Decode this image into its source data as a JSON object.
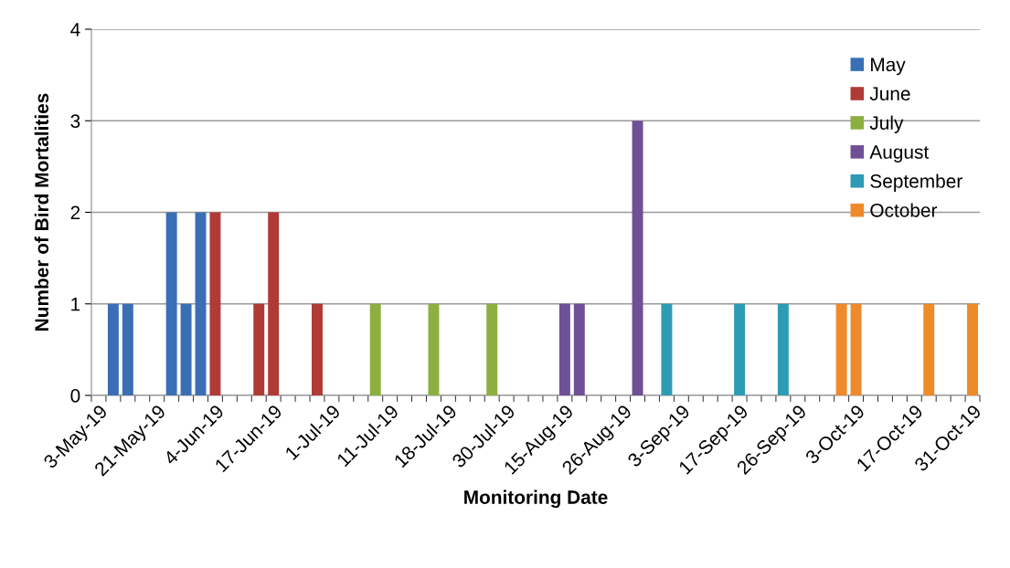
{
  "chart_data": {
    "type": "bar",
    "xlabel": "Monitoring Date",
    "ylabel": "Number of Bird Mortalities",
    "categories": [
      "3-May-19",
      null,
      null,
      null,
      "21-May-19",
      null,
      null,
      null,
      "4-Jun-19",
      null,
      null,
      null,
      "17-Jun-19",
      null,
      null,
      null,
      "1-Jul-19",
      null,
      null,
      null,
      "11-Jul-19",
      null,
      null,
      null,
      "18-Jul-19",
      null,
      null,
      null,
      "30-Jul-19",
      null,
      null,
      null,
      "15-Aug-19",
      null,
      null,
      null,
      "26-Aug-19",
      null,
      null,
      null,
      "3-Sep-19",
      null,
      null,
      null,
      "17-Sep-19",
      null,
      null,
      null,
      "26-Sep-19",
      null,
      null,
      null,
      "3-Oct-19",
      null,
      null,
      null,
      "17-Oct-19",
      null,
      null,
      null,
      "31-Oct-19"
    ],
    "series": [
      {
        "name": "May",
        "color": "#3a6fb5",
        "values": [
          null,
          1,
          1,
          null,
          null,
          2,
          1,
          2,
          null,
          null,
          null,
          null,
          null,
          null,
          null,
          null,
          null,
          null,
          null,
          null,
          null,
          null,
          null,
          null,
          null,
          null,
          null,
          null,
          null,
          null,
          null,
          null,
          null,
          null,
          null,
          null,
          null,
          null,
          null,
          null,
          null,
          null,
          null,
          null,
          null,
          null,
          null,
          null,
          null,
          null,
          null,
          null,
          null,
          null,
          null,
          null,
          null,
          null,
          null,
          null,
          null
        ]
      },
      {
        "name": "June",
        "color": "#b03a36",
        "values": [
          null,
          null,
          null,
          null,
          null,
          null,
          null,
          null,
          2,
          null,
          null,
          1,
          2,
          null,
          null,
          1,
          null,
          null,
          null,
          null,
          null,
          null,
          null,
          null,
          null,
          null,
          null,
          null,
          null,
          null,
          null,
          null,
          null,
          null,
          null,
          null,
          null,
          null,
          null,
          null,
          null,
          null,
          null,
          null,
          null,
          null,
          null,
          null,
          null,
          null,
          null,
          null,
          null,
          null,
          null,
          null,
          null,
          null,
          null,
          null,
          null
        ]
      },
      {
        "name": "July",
        "color": "#8cb040",
        "values": [
          null,
          null,
          null,
          null,
          null,
          null,
          null,
          null,
          null,
          null,
          null,
          null,
          null,
          null,
          null,
          null,
          null,
          null,
          null,
          1,
          null,
          null,
          null,
          1,
          null,
          null,
          null,
          1,
          null,
          null,
          null,
          null,
          null,
          null,
          null,
          null,
          null,
          null,
          null,
          null,
          null,
          null,
          null,
          null,
          null,
          null,
          null,
          null,
          null,
          null,
          null,
          null,
          null,
          null,
          null,
          null,
          null,
          null,
          null,
          null,
          null
        ]
      },
      {
        "name": "August",
        "color": "#6f4f96",
        "values": [
          null,
          null,
          null,
          null,
          null,
          null,
          null,
          null,
          null,
          null,
          null,
          null,
          null,
          null,
          null,
          null,
          null,
          null,
          null,
          null,
          null,
          null,
          null,
          null,
          null,
          null,
          null,
          null,
          null,
          null,
          null,
          null,
          1,
          1,
          null,
          null,
          null,
          3,
          null,
          null,
          null,
          null,
          null,
          null,
          null,
          null,
          null,
          null,
          null,
          null,
          null,
          null,
          null,
          null,
          null,
          null,
          null,
          null,
          null,
          null,
          null
        ]
      },
      {
        "name": "September",
        "color": "#2e9bb5",
        "values": [
          null,
          null,
          null,
          null,
          null,
          null,
          null,
          null,
          null,
          null,
          null,
          null,
          null,
          null,
          null,
          null,
          null,
          null,
          null,
          null,
          null,
          null,
          null,
          null,
          null,
          null,
          null,
          null,
          null,
          null,
          null,
          null,
          null,
          null,
          null,
          null,
          null,
          null,
          null,
          1,
          null,
          null,
          null,
          null,
          1,
          null,
          null,
          1,
          null,
          null,
          null,
          null,
          null,
          null,
          null,
          null,
          null,
          null,
          null,
          null,
          null
        ]
      },
      {
        "name": "October",
        "color": "#ee8a2a",
        "values": [
          null,
          null,
          null,
          null,
          null,
          null,
          null,
          null,
          null,
          null,
          null,
          null,
          null,
          null,
          null,
          null,
          null,
          null,
          null,
          null,
          null,
          null,
          null,
          null,
          null,
          null,
          null,
          null,
          null,
          null,
          null,
          null,
          null,
          null,
          null,
          null,
          null,
          null,
          null,
          null,
          null,
          null,
          null,
          null,
          null,
          null,
          null,
          null,
          null,
          null,
          null,
          1,
          1,
          null,
          null,
          null,
          null,
          1,
          null,
          null,
          1
        ]
      }
    ],
    "ylim": [
      0,
      4
    ],
    "yticks": [
      0,
      1,
      2,
      3,
      4
    ],
    "grid": "y",
    "legend": "top right"
  }
}
